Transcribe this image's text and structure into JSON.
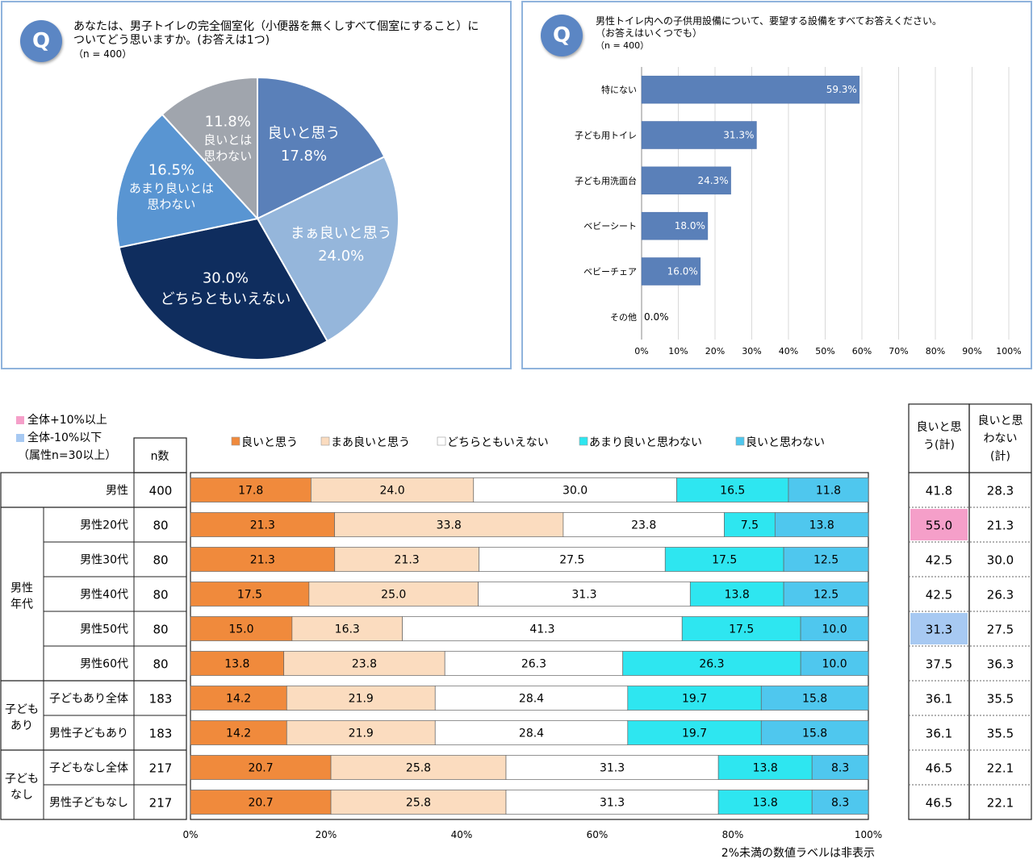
{
  "q1": {
    "badge": "Q",
    "text_line1": "あなたは、男子トイレの完全個室化（小便器を無くしすべて個室にすること）に",
    "text_line2": "ついてどう思いますか。(お答えは1つ)",
    "n": "（n = 400）"
  },
  "q2": {
    "badge": "Q",
    "text_line1": "男性トイレ内への子供用設備について、要望する設備をすべてお答えください。",
    "text_line2": "（お答えはいくつでも）",
    "n": "（n = 400）"
  },
  "bottom": {
    "key_plus": "全体+10%以上",
    "key_minus": "全体-10%以下",
    "key_note": "（属性n=30以上）",
    "n_header": "n数",
    "good_total_header": [
      "良いと思",
      "う(計)"
    ],
    "bad_total_header": [
      "良いと思",
      "わない",
      "(計)"
    ],
    "footnote": "2%未満の数値ラベルは非表示",
    "group_labels": [
      {
        "lines": [
          "男性",
          "年代"
        ]
      },
      {
        "lines": [
          "子ども",
          "あり"
        ]
      },
      {
        "lines": [
          "子ども",
          "なし"
        ]
      }
    ],
    "colors": {
      "plus": "#f59fc9",
      "minus": "#a7c9f2"
    }
  },
  "chart_data": [
    {
      "type": "pie",
      "labels": [
        "良いと思う",
        "まぁ良いと思う",
        "どちらともいえない",
        "あまり良いとは思わない",
        "良いとは思わない"
      ],
      "label_lines": [
        [
          "良いと思う"
        ],
        [
          "まぁ良いと思う"
        ],
        [
          "どちらともいえない"
        ],
        [
          "あまり良いとは",
          "思わない"
        ],
        [
          "良いとは",
          "思わない"
        ]
      ],
      "values": [
        17.8,
        24.0,
        30.0,
        16.5,
        11.8
      ],
      "value_labels": [
        "17.8%",
        "24.0%",
        "30.0%",
        "16.5%",
        "11.8%"
      ],
      "colors": [
        "#5a80b9",
        "#95b6db",
        "#0f2d5e",
        "#5995d2",
        "#a0a5ad"
      ]
    },
    {
      "type": "bar",
      "orientation": "horizontal",
      "categories": [
        "特にない",
        "子ども用トイレ",
        "子ども用洗面台",
        "ベビーシート",
        "ベビーチェア",
        "その他"
      ],
      "values": [
        59.3,
        31.3,
        24.3,
        18.0,
        16.0,
        0.0
      ],
      "value_labels": [
        "59.3%",
        "31.3%",
        "24.3%",
        "18.0%",
        "16.0%",
        "0.0%"
      ],
      "xlim": [
        0,
        100
      ],
      "xticks": [
        "0%",
        "10%",
        "20%",
        "30%",
        "40%",
        "50%",
        "60%",
        "70%",
        "80%",
        "90%",
        "100%"
      ],
      "color": "#5a80b9",
      "grid": true
    },
    {
      "type": "bar",
      "orientation": "horizontal",
      "stacked": "100%",
      "series_names": [
        "良いと思う",
        "まあ良いと思う",
        "どちらともいえない",
        "あまり良いと思わない",
        "良いと思わない"
      ],
      "series_colors": [
        "#f08a3c",
        "#fbdcbf",
        "#ffffff",
        "#2ee6f0",
        "#4fc7ee"
      ],
      "xticks": [
        "0%",
        "20%",
        "40%",
        "60%",
        "80%",
        "100%"
      ],
      "xlim": [
        0,
        100
      ],
      "rows": [
        {
          "label": "男性",
          "n": "400",
          "values": [
            17.8,
            24.0,
            30.0,
            16.5,
            11.8
          ],
          "good_total": "41.8",
          "bad_total": "28.3",
          "good_flag": "",
          "bad_flag": ""
        },
        {
          "label": "男性20代",
          "n": "80",
          "values": [
            21.3,
            33.8,
            23.8,
            7.5,
            13.8
          ],
          "good_total": "55.0",
          "bad_total": "21.3",
          "good_flag": "plus",
          "bad_flag": ""
        },
        {
          "label": "男性30代",
          "n": "80",
          "values": [
            21.3,
            21.3,
            27.5,
            17.5,
            12.5
          ],
          "good_total": "42.5",
          "bad_total": "30.0",
          "good_flag": "",
          "bad_flag": ""
        },
        {
          "label": "男性40代",
          "n": "80",
          "values": [
            17.5,
            25.0,
            31.3,
            13.8,
            12.5
          ],
          "good_total": "42.5",
          "bad_total": "26.3",
          "good_flag": "",
          "bad_flag": ""
        },
        {
          "label": "男性50代",
          "n": "80",
          "values": [
            15.0,
            16.3,
            41.3,
            17.5,
            10.0
          ],
          "good_total": "31.3",
          "bad_total": "27.5",
          "good_flag": "minus",
          "bad_flag": ""
        },
        {
          "label": "男性60代",
          "n": "80",
          "values": [
            13.8,
            23.8,
            26.3,
            26.3,
            10.0
          ],
          "good_total": "37.5",
          "bad_total": "36.3",
          "good_flag": "",
          "bad_flag": ""
        },
        {
          "label": "子どもあり全体",
          "n": "183",
          "values": [
            14.2,
            21.9,
            28.4,
            19.7,
            15.8
          ],
          "good_total": "36.1",
          "bad_total": "35.5",
          "good_flag": "",
          "bad_flag": ""
        },
        {
          "label": "男性子どもあり",
          "n": "183",
          "values": [
            14.2,
            21.9,
            28.4,
            19.7,
            15.8
          ],
          "good_total": "36.1",
          "bad_total": "35.5",
          "good_flag": "",
          "bad_flag": ""
        },
        {
          "label": "子どもなし全体",
          "n": "217",
          "values": [
            20.7,
            25.8,
            31.3,
            13.8,
            8.3
          ],
          "good_total": "46.5",
          "bad_total": "22.1",
          "good_flag": "",
          "bad_flag": ""
        },
        {
          "label": "男性子どもなし",
          "n": "217",
          "values": [
            20.7,
            25.8,
            31.3,
            13.8,
            8.3
          ],
          "good_total": "46.5",
          "bad_total": "22.1",
          "good_flag": "",
          "bad_flag": ""
        }
      ]
    }
  ]
}
